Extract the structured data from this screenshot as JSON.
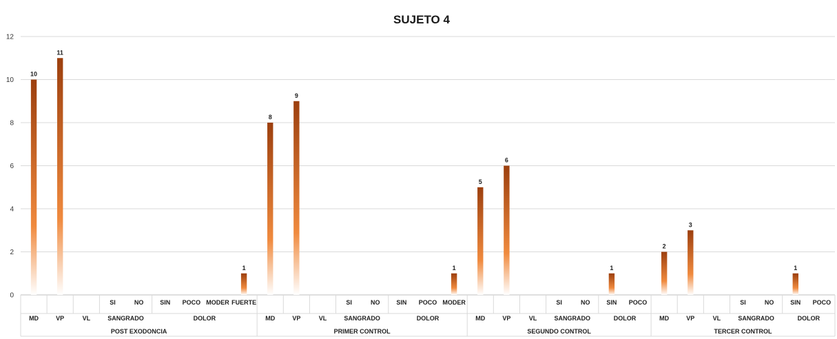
{
  "chart_data": {
    "type": "bar",
    "title": "SUJETO 4",
    "ylim": [
      0,
      12
    ],
    "yticks": [
      0,
      2,
      4,
      6,
      8,
      10,
      12
    ],
    "grid": true,
    "bar_gradient": [
      "#9c3f0e",
      "#f08a3e",
      "#ffffff"
    ],
    "groups": [
      {
        "name": "POST EXODONCIA",
        "subgroups": [
          {
            "name": "MD",
            "items": [
              {
                "label": "",
                "value": 10
              }
            ]
          },
          {
            "name": "VP",
            "items": [
              {
                "label": "",
                "value": 11
              }
            ]
          },
          {
            "name": "VL",
            "items": [
              {
                "label": "",
                "value": 0
              }
            ]
          },
          {
            "name": "SANGRADO",
            "items": [
              {
                "label": "SI",
                "value": 0
              },
              {
                "label": "NO",
                "value": 0
              }
            ]
          },
          {
            "name": "DOLOR",
            "items": [
              {
                "label": "SIN",
                "value": 0
              },
              {
                "label": "POCO",
                "value": 0
              },
              {
                "label": "MODER",
                "value": 0
              },
              {
                "label": "FUERTE",
                "value": 1
              }
            ]
          }
        ]
      },
      {
        "name": "PRIMER CONTROL",
        "subgroups": [
          {
            "name": "MD",
            "items": [
              {
                "label": "",
                "value": 8
              }
            ]
          },
          {
            "name": "VP",
            "items": [
              {
                "label": "",
                "value": 9
              }
            ]
          },
          {
            "name": "VL",
            "items": [
              {
                "label": "",
                "value": 0
              }
            ]
          },
          {
            "name": "SANGRADO",
            "items": [
              {
                "label": "SI",
                "value": 0
              },
              {
                "label": "NO",
                "value": 0
              }
            ]
          },
          {
            "name": "DOLOR",
            "items": [
              {
                "label": "SIN",
                "value": 0
              },
              {
                "label": "POCO",
                "value": 0
              },
              {
                "label": "MODER",
                "value": 1
              }
            ]
          }
        ]
      },
      {
        "name": "SEGUNDO CONTROL",
        "subgroups": [
          {
            "name": "MD",
            "items": [
              {
                "label": "",
                "value": 5
              }
            ]
          },
          {
            "name": "VP",
            "items": [
              {
                "label": "",
                "value": 6
              }
            ]
          },
          {
            "name": "VL",
            "items": [
              {
                "label": "",
                "value": 0
              }
            ]
          },
          {
            "name": "SANGRADO",
            "items": [
              {
                "label": "SI",
                "value": 0
              },
              {
                "label": "NO",
                "value": 0
              }
            ]
          },
          {
            "name": "DOLOR",
            "items": [
              {
                "label": "SIN",
                "value": 1
              },
              {
                "label": "POCO",
                "value": 0
              }
            ]
          }
        ]
      },
      {
        "name": "TERCER CONTROL",
        "subgroups": [
          {
            "name": "MD",
            "items": [
              {
                "label": "",
                "value": 2
              }
            ]
          },
          {
            "name": "VP",
            "items": [
              {
                "label": "",
                "value": 3
              }
            ]
          },
          {
            "name": "VL",
            "items": [
              {
                "label": "",
                "value": 0
              }
            ]
          },
          {
            "name": "SANGRADO",
            "items": [
              {
                "label": "SI",
                "value": 0
              },
              {
                "label": "NO",
                "value": 0
              }
            ]
          },
          {
            "name": "DOLOR",
            "items": [
              {
                "label": "SIN",
                "value": 1
              },
              {
                "label": "POCO",
                "value": 0
              }
            ]
          }
        ]
      }
    ]
  }
}
